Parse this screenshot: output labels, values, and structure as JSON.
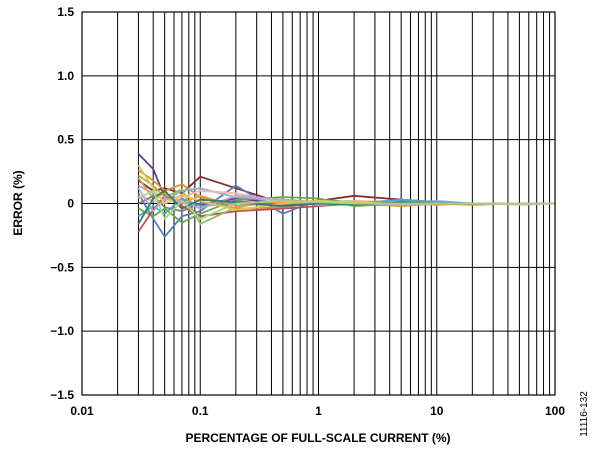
{
  "figure_id": "11116-132",
  "chart_data": {
    "type": "line",
    "title": "",
    "xlabel": "PERCENTAGE OF FULL-SCALE CURRENT (%)",
    "ylabel": "ERROR (%)",
    "x_scale": "log",
    "xlim": [
      0.01,
      100
    ],
    "ylim": [
      -1.5,
      1.5
    ],
    "grid": true,
    "legend": "none",
    "x_ticks": [
      {
        "value": 0.01,
        "label": "0.01"
      },
      {
        "value": 0.1,
        "label": "0.1"
      },
      {
        "value": 1,
        "label": "1"
      },
      {
        "value": 10,
        "label": "10"
      },
      {
        "value": 100,
        "label": "100"
      }
    ],
    "y_ticks": [
      {
        "value": 1.5,
        "label": "1.5"
      },
      {
        "value": 1.0,
        "label": "1.0"
      },
      {
        "value": 0.5,
        "label": "0.5"
      },
      {
        "value": 0,
        "label": "0"
      },
      {
        "value": -0.5,
        "label": "−0.5"
      },
      {
        "value": -1.0,
        "label": "−1.0"
      },
      {
        "value": -1.5,
        "label": "−1.5"
      }
    ],
    "x": [
      0.03,
      0.04,
      0.05,
      0.07,
      0.1,
      0.2,
      0.5,
      1,
      2,
      5,
      10,
      20,
      50,
      100
    ],
    "series": [
      {
        "color": "#5a3f8c",
        "values": [
          0.39,
          0.27,
          0.05,
          0.02,
          -0.01,
          0.04,
          0.0,
          0.02,
          0.0,
          0.01,
          0.0,
          0.0,
          0.0,
          0.0
        ]
      },
      {
        "color": "#8b2a2a",
        "values": [
          0.18,
          0.1,
          0.12,
          0.08,
          0.21,
          0.12,
          0.0,
          0.02,
          0.06,
          0.03,
          0.01,
          0.0,
          0.0,
          0.0
        ]
      },
      {
        "color": "#4f7fbf",
        "values": [
          0.08,
          -0.12,
          -0.26,
          -0.1,
          -0.06,
          0.14,
          -0.08,
          0.03,
          0.01,
          0.02,
          0.01,
          0.0,
          0.0,
          0.0
        ]
      },
      {
        "color": "#d9922e",
        "values": [
          0.26,
          0.18,
          0.1,
          0.15,
          0.05,
          -0.04,
          -0.03,
          0.01,
          0.0,
          -0.02,
          0.0,
          -0.01,
          0.0,
          0.0
        ]
      },
      {
        "color": "#6aa84f",
        "values": [
          -0.04,
          -0.1,
          -0.04,
          -0.15,
          -0.08,
          0.03,
          0.05,
          0.04,
          -0.02,
          0.0,
          0.01,
          0.0,
          0.0,
          0.0
        ]
      },
      {
        "color": "#8fb0d8",
        "values": [
          0.14,
          0.08,
          0.02,
          0.1,
          0.12,
          0.05,
          0.02,
          0.0,
          -0.01,
          0.01,
          0.02,
          0.0,
          0.0,
          0.0
        ]
      },
      {
        "color": "#c0504d",
        "values": [
          -0.22,
          -0.05,
          0.06,
          -0.02,
          -0.1,
          -0.06,
          -0.04,
          -0.02,
          0.0,
          0.01,
          0.0,
          0.0,
          0.0,
          0.0
        ]
      },
      {
        "color": "#9bbb59",
        "values": [
          0.22,
          0.14,
          0.05,
          0.11,
          -0.16,
          -0.03,
          0.03,
          0.01,
          0.02,
          0.0,
          0.0,
          0.0,
          0.0,
          0.0
        ]
      },
      {
        "color": "#f2b8a0",
        "values": [
          0.06,
          0.02,
          0.0,
          0.05,
          0.1,
          0.08,
          0.01,
          -0.01,
          0.02,
          0.01,
          0.0,
          0.0,
          -0.01,
          0.0
        ]
      },
      {
        "color": "#4bacc6",
        "values": [
          -0.1,
          -0.02,
          -0.08,
          0.04,
          -0.02,
          0.0,
          -0.02,
          0.01,
          0.0,
          0.03,
          0.01,
          0.0,
          0.0,
          0.0
        ]
      },
      {
        "color": "#f79646",
        "values": [
          0.2,
          0.04,
          0.08,
          0.0,
          0.06,
          -0.02,
          0.01,
          0.02,
          -0.01,
          0.0,
          -0.01,
          0.0,
          0.0,
          0.0
        ]
      },
      {
        "color": "#7f7f7f",
        "values": [
          0.0,
          0.06,
          -0.03,
          -0.06,
          0.0,
          0.02,
          -0.01,
          0.0,
          0.01,
          0.0,
          0.0,
          0.0,
          0.0,
          0.0
        ]
      },
      {
        "color": "#b7a6d6",
        "values": [
          0.12,
          -0.06,
          0.04,
          0.02,
          -0.04,
          0.06,
          0.03,
          -0.01,
          0.0,
          -0.01,
          0.0,
          0.0,
          0.0,
          0.0
        ]
      },
      {
        "color": "#e6c84f",
        "values": [
          0.3,
          0.12,
          0.0,
          0.07,
          0.02,
          -0.05,
          0.0,
          0.02,
          0.01,
          0.0,
          0.0,
          0.0,
          0.0,
          0.0
        ]
      },
      {
        "color": "#2e7d6f",
        "values": [
          -0.16,
          0.04,
          0.1,
          -0.04,
          0.03,
          0.01,
          -0.02,
          0.0,
          -0.01,
          0.01,
          0.0,
          0.0,
          0.0,
          0.0
        ]
      },
      {
        "color": "#a9d18e",
        "values": [
          0.04,
          0.1,
          -0.12,
          0.02,
          -0.12,
          0.0,
          0.02,
          0.01,
          0.0,
          0.0,
          0.0,
          0.0,
          0.0,
          0.0
        ]
      }
    ]
  }
}
